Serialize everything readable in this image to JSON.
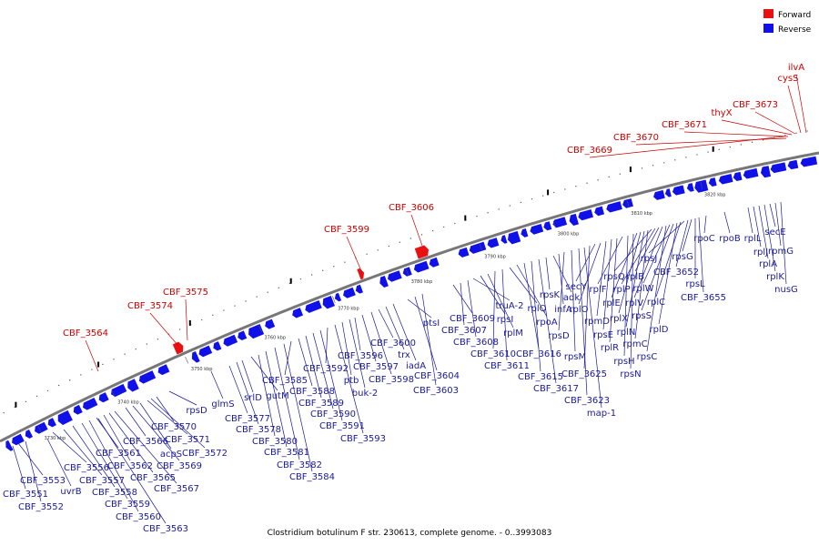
{
  "caption": "Clostridium botulinum F str. 230613, complete genome. - 0..3993083",
  "legend": [
    {
      "label": "Forward",
      "color": "#e81010"
    },
    {
      "label": "Reverse",
      "color": "#1010e8"
    }
  ],
  "colors": {
    "forward": "#e81010",
    "reverse": "#1010e8",
    "backbone": "#777777",
    "label_forward": "#cc0000",
    "label_reverse": "#1a1a99"
  },
  "ticks": [
    "3730 kbp",
    "3740 kbp",
    "3750 kbp",
    "3760 kbp",
    "3770 kbp",
    "3780 kbp",
    "3790 kbp",
    "3800 kbp",
    "3810 kbp",
    "3820 kbp"
  ],
  "forward_genes": [
    "CBF_3564",
    "CBF_3574",
    "CBF_3575",
    "CBF_3599",
    "CBF_3606",
    "CBF_3669",
    "CBF_3670",
    "CBF_3671",
    "thyX",
    "CBF_3673",
    "cysS",
    "ilvA"
  ],
  "reverse_genes": [
    "CBF_3551",
    "CBF_3552",
    "CBF_3553",
    "uvrB",
    "CBF_3556",
    "CBF_3557",
    "CBF_3558",
    "CBF_3559",
    "CBF_3560",
    "CBF_3561",
    "CBF_3562",
    "CBF_3563",
    "CBF_3565",
    "CBF_3566",
    "CBF_3567",
    "CBF_3569",
    "acpS",
    "CBF_3570",
    "CBF_3571",
    "CBF_3572",
    "rpsD",
    "glmS",
    "CBF_3577",
    "CBF_3578",
    "srlD",
    "gutM",
    "CBF_3580",
    "CBF_3581",
    "CBF_3582",
    "CBF_3584",
    "CBF_3585",
    "CBF_3588",
    "CBF_3589",
    "CBF_3590",
    "CBF_3591",
    "CBF_3592",
    "CBF_3593",
    "ptb",
    "buk-2",
    "CBF_3596",
    "CBF_3597",
    "CBF_3598",
    "CBF_3600",
    "trx",
    "iadA",
    "ptsI",
    "CBF_3603",
    "CBF_3604",
    "CBF_3607",
    "CBF_3608",
    "CBF_3609",
    "truA-2",
    "rplM",
    "rpsI",
    "CBF_3610",
    "CBF_3611",
    "rplQ",
    "rpoA",
    "CBF_3615",
    "CBF_3616",
    "CBF_3617",
    "rpsK",
    "adk",
    "infA",
    "rpsD",
    "rpsM",
    "CBF_3623",
    "map-1",
    "CBF_3625",
    "secY",
    "rplO",
    "rpmD",
    "rpsE",
    "rplR",
    "rplF",
    "rpsH",
    "rpsN",
    "rplE",
    "rplX",
    "rplN",
    "rpmC",
    "rpsQ",
    "rplP",
    "rplB",
    "rplV",
    "rpsC",
    "rplW",
    "rpsS",
    "rplD",
    "rplC",
    "rpsJ",
    "CBF_3652",
    "rpsG",
    "rpsL",
    "CBF_3655",
    "rpoC",
    "rpoB",
    "rplL",
    "rplJ",
    "rplA",
    "rplK",
    "secE",
    "rpmG",
    "nusG"
  ]
}
